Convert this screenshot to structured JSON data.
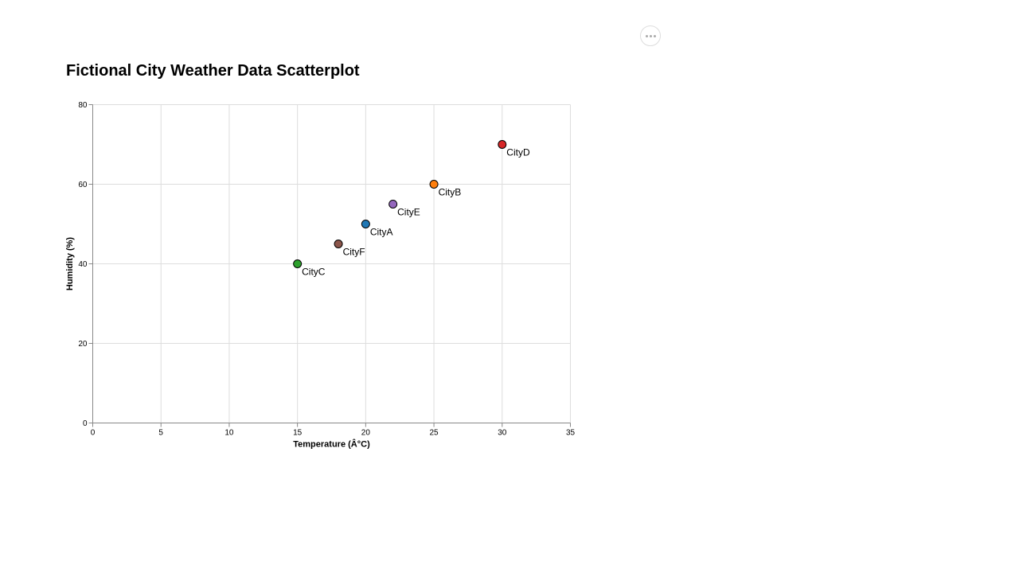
{
  "toolbar": {
    "menu_icon": "more-horizontal-icon"
  },
  "chart_data": {
    "type": "scatter",
    "title": "Fictional City Weather Data Scatterplot",
    "xlabel": "Temperature (Â°C)",
    "ylabel": "Humidity (%)",
    "xlim": [
      0,
      35
    ],
    "ylim": [
      0,
      80
    ],
    "xticks": [
      0,
      5,
      10,
      15,
      20,
      25,
      30,
      35
    ],
    "yticks": [
      0,
      20,
      40,
      60,
      80
    ],
    "grid": true,
    "legend": "none",
    "points": [
      {
        "label": "CityA",
        "x": 20,
        "y": 50,
        "color": "#1f77b4"
      },
      {
        "label": "CityB",
        "x": 25,
        "y": 60,
        "color": "#ff7f0e"
      },
      {
        "label": "CityC",
        "x": 15,
        "y": 40,
        "color": "#2ca02c"
      },
      {
        "label": "CityD",
        "x": 30,
        "y": 70,
        "color": "#d62728"
      },
      {
        "label": "CityE",
        "x": 22,
        "y": 55,
        "color": "#9467bd"
      },
      {
        "label": "CityF",
        "x": 18,
        "y": 45,
        "color": "#8c564b"
      }
    ]
  }
}
